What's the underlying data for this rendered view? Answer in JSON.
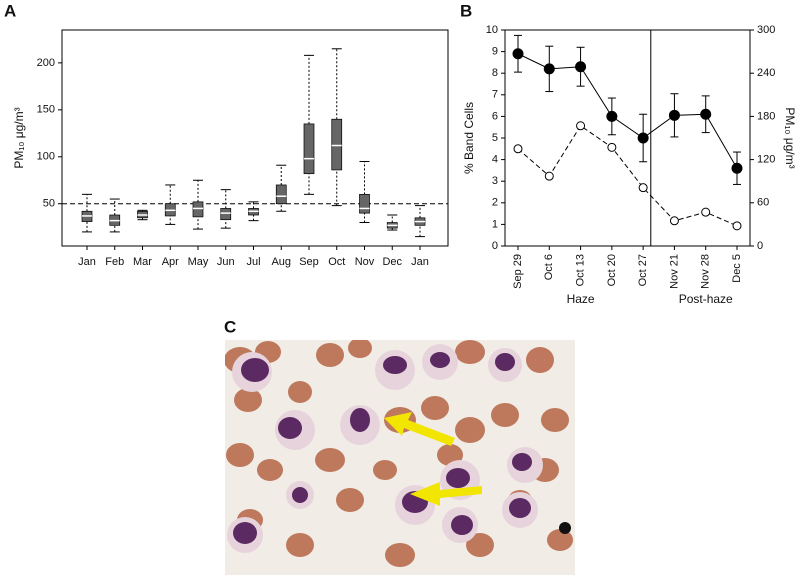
{
  "chart_data": [
    {
      "type": "box",
      "panel": "A",
      "y_label": "PM₁₀ μg/m³",
      "categories": [
        "Jan",
        "Feb",
        "Mar",
        "Apr",
        "May",
        "Jun",
        "Jul",
        "Aug",
        "Sep",
        "Oct",
        "Nov",
        "Dec",
        "Jan"
      ],
      "min": [
        20,
        20,
        33,
        28,
        23,
        24,
        32,
        42,
        60,
        48,
        30,
        22,
        15
      ],
      "q1": [
        31,
        27,
        35,
        37,
        36,
        33,
        38,
        50,
        82,
        86,
        40,
        24,
        27
      ],
      "median": [
        37,
        32,
        38,
        43,
        45,
        40,
        42,
        58,
        98,
        112,
        45,
        27,
        31
      ],
      "q3": [
        42,
        38,
        42,
        50,
        52,
        45,
        45,
        70,
        135,
        140,
        60,
        30,
        35
      ],
      "max": [
        60,
        55,
        43,
        70,
        75,
        65,
        52,
        91,
        208,
        215,
        95,
        38,
        48
      ],
      "color": "#666666",
      "reference_line": 50,
      "ylim": [
        5,
        235
      ],
      "yticks": [
        50,
        100,
        150,
        200
      ]
    },
    {
      "type": "line",
      "panel": "B",
      "y_label": "% Band Cells",
      "y2_label": "PM₁₀ μg/m³",
      "categories": [
        "Sep 29",
        "Oct 6",
        "Oct 13",
        "Oct 20",
        "Oct 27",
        "Nov 21",
        "Nov 28",
        "Dec 5"
      ],
      "series": [
        {
          "color": "#000000",
          "marker": "filled",
          "linestyle": "solid",
          "values": [
            8.9,
            8.2,
            8.3,
            6.0,
            5.0,
            6.05,
            6.1,
            3.6
          ],
          "errors": [
            0.85,
            1.05,
            0.9,
            0.85,
            1.1,
            1.0,
            0.85,
            0.75
          ]
        },
        {
          "color": "#000000",
          "marker": "open",
          "linestyle": "dashed",
          "axis": "y2",
          "values": [
            135,
            97,
            167,
            137,
            81,
            35,
            47,
            28
          ]
        }
      ],
      "groups": [
        "Haze",
        "Post-haze"
      ],
      "separator_after": 4,
      "ylim": [
        0,
        10
      ],
      "yticks": [
        0,
        1,
        2,
        3,
        4,
        5,
        6,
        7,
        8,
        9,
        10
      ],
      "y2lim": [
        0,
        300
      ],
      "y2ticks": [
        0,
        60,
        120,
        180,
        240,
        300
      ]
    }
  ],
  "image_panel": {
    "label": "C"
  }
}
